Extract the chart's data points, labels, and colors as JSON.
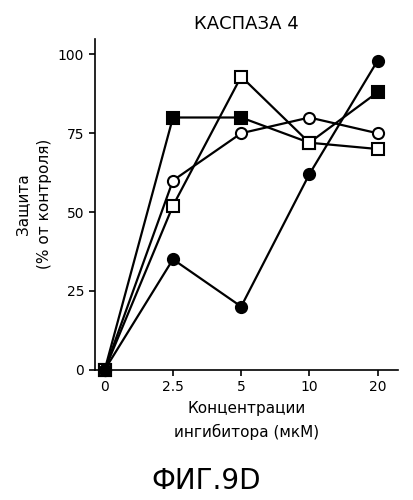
{
  "title": "КАСПАЗА 4",
  "xlabel": "Концентрации\nингибитора (мкМ)",
  "ylabel": "Защита\n(% от контроля)",
  "footnote": "ФИГ.9D",
  "x": [
    0,
    2.5,
    5,
    10,
    20
  ],
  "series": [
    {
      "y": [
        0,
        80,
        80,
        72,
        88
      ],
      "marker": "s",
      "filled": true,
      "label": "filled_square"
    },
    {
      "y": [
        0,
        52,
        93,
        72,
        70
      ],
      "marker": "s",
      "filled": false,
      "label": "open_square"
    },
    {
      "y": [
        0,
        60,
        75,
        80,
        75
      ],
      "marker": "o",
      "filled": false,
      "label": "open_circle"
    },
    {
      "y": [
        0,
        35,
        20,
        62,
        98
      ],
      "marker": "o",
      "filled": true,
      "label": "filled_circle"
    }
  ],
  "ylim": [
    0,
    105
  ],
  "yticks": [
    0,
    25,
    50,
    75,
    100
  ],
  "xtick_positions": [
    0,
    1,
    2,
    3,
    4
  ],
  "xtick_labels": [
    "0",
    "2.5",
    "5",
    "10",
    "20"
  ],
  "line_color": "#000000",
  "background_color": "#ffffff",
  "marker_size": 8,
  "linewidth": 1.6,
  "title_fontsize": 13,
  "label_fontsize": 11,
  "tick_fontsize": 10,
  "footnote_fontsize": 20
}
